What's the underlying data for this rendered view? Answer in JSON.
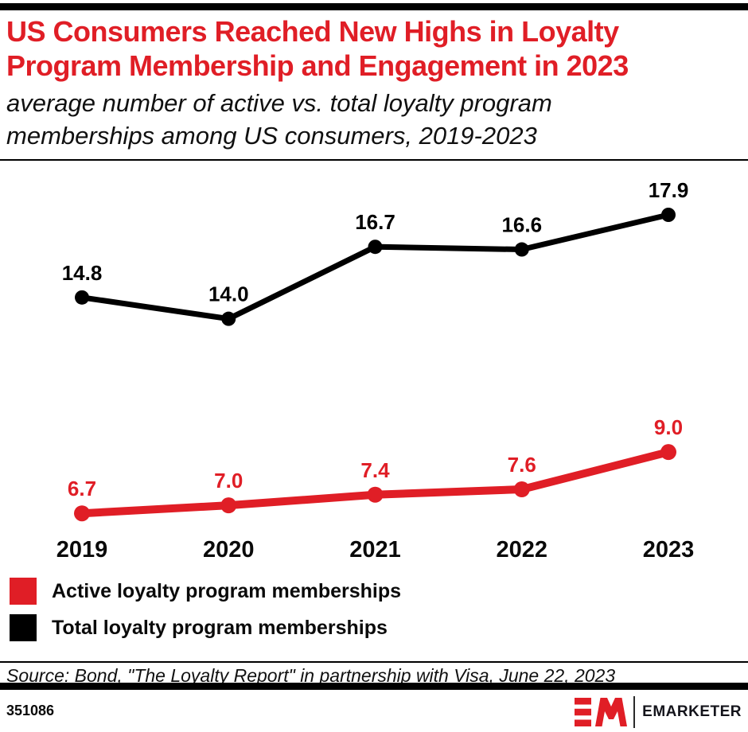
{
  "header": {
    "title": "US Consumers Reached New Highs in Loyalty Program Membership and Engagement in 2023",
    "subtitle": "average number of active vs. total loyalty program memberships among US consumers, 2019-2023"
  },
  "chart_data": {
    "type": "line",
    "title": "US Consumers Reached New Highs in Loyalty Program Membership and Engagement in 2023",
    "subtitle": "average number of active vs. total loyalty program memberships among US consumers, 2019-2023",
    "categories": [
      "2019",
      "2020",
      "2021",
      "2022",
      "2023"
    ],
    "series": [
      {
        "name": "Active loyalty program memberships",
        "color": "#e01e26",
        "values": [
          6.7,
          7.0,
          7.4,
          7.6,
          9.0
        ],
        "line_width": 10,
        "point_radius": 10
      },
      {
        "name": "Total loyalty program memberships",
        "color": "#000000",
        "values": [
          14.8,
          14.0,
          16.7,
          16.6,
          17.9
        ],
        "line_width": 7,
        "point_radius": 9
      }
    ],
    "value_labels": true,
    "grid": false,
    "y_axis_visible": false,
    "legend_position": "below-chart-left"
  },
  "source_line": "Source: Bond, \"The Loyalty Report\" in partnership with Visa, June 22, 2023",
  "footer": {
    "chart_id": "351086",
    "brand_name": "EMARKETER"
  },
  "colors": {
    "accent_red": "#e01e26",
    "black": "#000000"
  }
}
